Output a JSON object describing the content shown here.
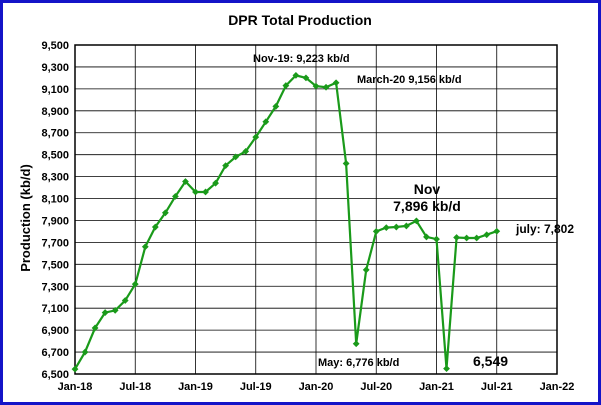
{
  "chart_data": {
    "type": "line",
    "title": "DPR Total  Production",
    "ylabel": "Production (kb/d)",
    "xlabel": "",
    "ylim": [
      6500,
      9500
    ],
    "yticks": [
      6500,
      6700,
      6900,
      7100,
      7300,
      7500,
      7700,
      7900,
      8100,
      8300,
      8500,
      8700,
      8900,
      9100,
      9300,
      9500
    ],
    "ytick_labels": [
      "6,500",
      "6,700",
      "6,900",
      "7,100",
      "7,300",
      "7,500",
      "7,700",
      "7,900",
      "8,100",
      "8,300",
      "8,500",
      "8,700",
      "8,900",
      "9,100",
      "9,300",
      "9,500"
    ],
    "xlim": [
      "2018-01",
      "2022-01"
    ],
    "xticks": [
      "2018-01",
      "2018-07",
      "2019-01",
      "2019-07",
      "2020-01",
      "2020-07",
      "2021-01",
      "2021-07",
      "2022-01"
    ],
    "xtick_labels": [
      "Jan-18",
      "Jul-18",
      "Jan-19",
      "Jul-19",
      "Jan-20",
      "Jul-20",
      "Jan-21",
      "Jul-21",
      "Jan-22"
    ],
    "grid": true,
    "legend": "none",
    "series_color": "#1a9a1a",
    "series": [
      {
        "x": [
          "2018-01",
          "2018-02",
          "2018-03",
          "2018-04",
          "2018-05",
          "2018-06",
          "2018-07",
          "2018-08",
          "2018-09",
          "2018-10",
          "2018-11",
          "2018-12",
          "2019-01",
          "2019-02",
          "2019-03",
          "2019-04",
          "2019-05",
          "2019-06",
          "2019-07",
          "2019-08",
          "2019-09",
          "2019-10",
          "2019-11",
          "2019-12",
          "2020-01",
          "2020-02",
          "2020-03",
          "2020-04",
          "2020-05",
          "2020-06",
          "2020-07",
          "2020-08",
          "2020-09",
          "2020-10",
          "2020-11",
          "2020-12",
          "2021-01",
          "2021-02",
          "2021-03",
          "2021-04",
          "2021-05",
          "2021-06",
          "2021-07"
        ],
        "values": [
          6545,
          6700,
          6920,
          7060,
          7080,
          7170,
          7320,
          7660,
          7840,
          7970,
          8120,
          8255,
          8160,
          8160,
          8240,
          8400,
          8480,
          8530,
          8660,
          8800,
          8940,
          9130,
          9223,
          9200,
          9125,
          9115,
          9156,
          8420,
          6776,
          7450,
          7800,
          7835,
          7840,
          7850,
          7896,
          7750,
          7730,
          6549,
          7745,
          7740,
          7740,
          7770,
          7802
        ]
      }
    ],
    "annotations": [
      {
        "text": "Nov-19: 9,223 kb/d"
      },
      {
        "text": "March-20 9,156 kb/d"
      },
      {
        "text": "Nov"
      },
      {
        "text": "7,896 kb/d"
      },
      {
        "text": "july: 7,802"
      },
      {
        "text": "May: 6,776 kb/d"
      },
      {
        "text": "6,549"
      }
    ]
  }
}
